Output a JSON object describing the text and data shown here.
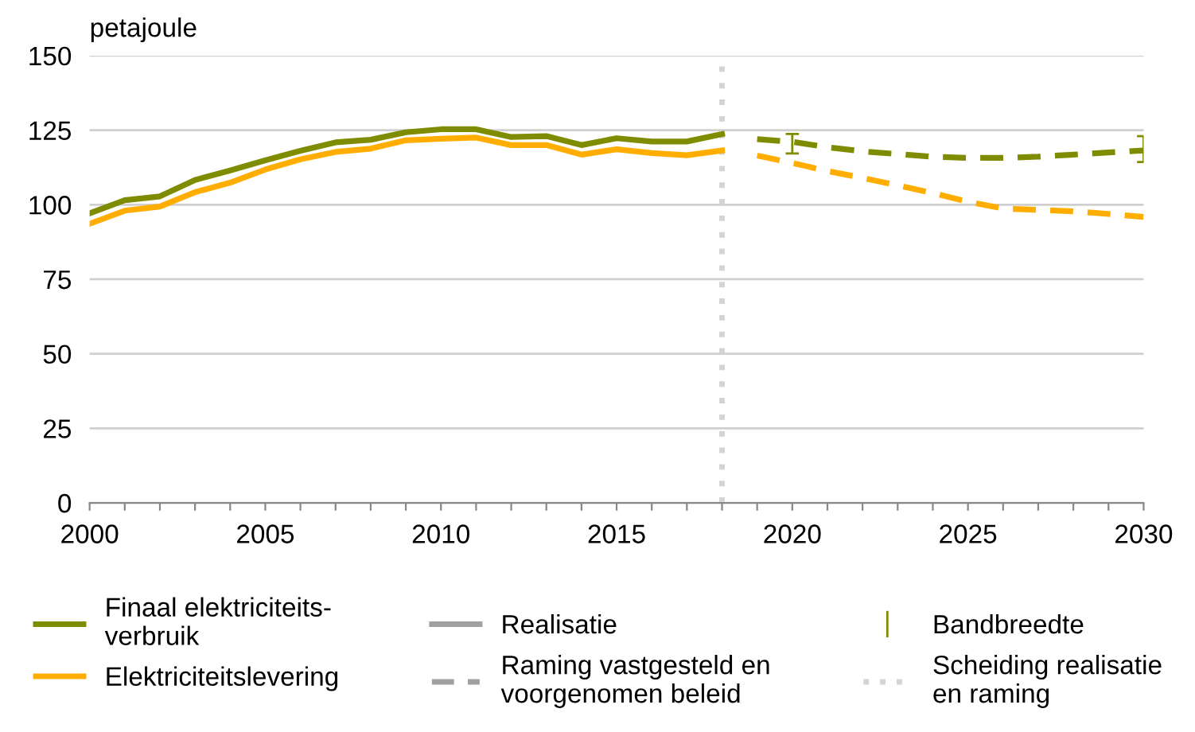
{
  "chart_data": {
    "type": "line",
    "ylabel": "petajoule",
    "xlim": [
      2000,
      2030
    ],
    "xticks": [
      2000,
      {
        "value": 2001,
        "label": null
      },
      {
        "value": 2002,
        "label": null
      },
      {
        "value": 2003,
        "label": null
      },
      {
        "value": 2004,
        "label": null
      },
      2005,
      {
        "value": 2006,
        "label": null
      },
      {
        "value": 2007,
        "label": null
      },
      {
        "value": 2008,
        "label": null
      },
      {
        "value": 2009,
        "label": null
      },
      2010,
      {
        "value": 2011,
        "label": null
      },
      {
        "value": 2012,
        "label": null
      },
      {
        "value": 2013,
        "label": null
      },
      {
        "value": 2014,
        "label": null
      },
      2015,
      {
        "value": 2016,
        "label": null
      },
      {
        "value": 2017,
        "label": null
      },
      {
        "value": 2018,
        "label": null
      },
      {
        "value": 2019,
        "label": null
      },
      2020,
      {
        "value": 2021,
        "label": null
      },
      {
        "value": 2022,
        "label": null
      },
      {
        "value": 2023,
        "label": null
      },
      {
        "value": 2024,
        "label": null
      },
      2025,
      {
        "value": 2026,
        "label": null
      },
      {
        "value": 2027,
        "label": null
      },
      {
        "value": 2028,
        "label": null
      },
      {
        "value": 2029,
        "label": null
      },
      2030
    ],
    "ylim": [
      0,
      150
    ],
    "yticks": [
      0,
      25,
      50,
      75,
      100,
      125,
      150
    ],
    "grid": "y",
    "legend": "bottom",
    "series": [
      {
        "name": "Finaal elektriciteits-\nverbruik",
        "color": "#7f8c00",
        "line_style": "solid",
        "x": [
          2000,
          2001,
          2002,
          2003,
          2004,
          2005,
          2006,
          2007,
          2008,
          2009,
          2010,
          2011,
          2012,
          2013,
          2014,
          2015,
          2016,
          2017,
          2018
        ],
        "values": [
          97.1,
          101.5,
          102.8,
          108.3,
          111.5,
          114.9,
          118.1,
          120.9,
          121.8,
          124.3,
          125.3,
          125.3,
          122.7,
          123.0,
          120.0,
          122.3,
          121.2,
          121.2,
          123.7
        ]
      },
      {
        "name": "Elektriciteitslevering",
        "color": "#ffae00",
        "line_style": "solid",
        "x": [
          2000,
          2001,
          2002,
          2003,
          2004,
          2005,
          2006,
          2007,
          2008,
          2009,
          2010,
          2011,
          2012,
          2013,
          2014,
          2015,
          2016,
          2017,
          2018
        ],
        "values": [
          93.6,
          98.0,
          99.4,
          104.2,
          107.4,
          111.8,
          115.2,
          117.7,
          118.8,
          121.6,
          122.1,
          122.5,
          120.0,
          120.0,
          116.8,
          118.6,
          117.3,
          116.6,
          118.2
        ]
      },
      {
        "color": "#7f8c00",
        "line_style": "dashed",
        "x": [
          2019,
          2020,
          2021,
          2022,
          2023,
          2024,
          2025,
          2026,
          2027,
          2028,
          2029,
          2030
        ],
        "values": [
          122.0,
          121.1,
          119.3,
          117.9,
          117.0,
          116.1,
          115.7,
          115.7,
          116.1,
          116.8,
          117.5,
          118.2
        ],
        "errors": [
          null,
          [
            117.2,
            123.7
          ],
          null,
          null,
          null,
          null,
          null,
          null,
          null,
          null,
          null,
          [
            114.3,
            123.0
          ]
        ]
      },
      {
        "color": "#ffae00",
        "line_style": "dashed",
        "x": [
          2019,
          2020,
          2021,
          2022,
          2023,
          2024,
          2025,
          2026,
          2027,
          2028,
          2029,
          2030
        ],
        "values": [
          116.5,
          114.0,
          111.3,
          109.0,
          106.5,
          103.9,
          101.0,
          98.7,
          98.3,
          97.8,
          96.9,
          95.9
        ]
      }
    ],
    "ref_lines": [
      {
        "axis": "x",
        "value": 2018,
        "label": "Scheiding realisatie\nen raming",
        "color": "#d4d4d4",
        "line_style": "dotted"
      }
    ],
    "annotations": [
      "Realisatie",
      "Raming vastgesteld en\nvoorgenomen beleid",
      "Bandbreedte"
    ]
  }
}
